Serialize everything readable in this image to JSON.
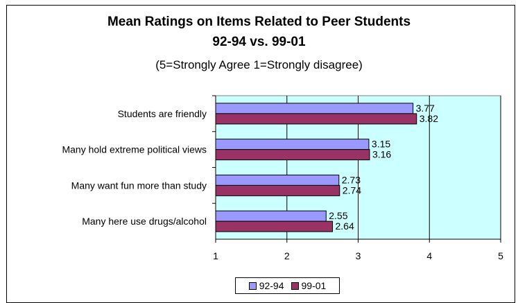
{
  "chart_data": {
    "type": "bar",
    "orientation": "horizontal",
    "title": "Mean Ratings on Items Related to Peer Students",
    "subtitle": "92-94 vs. 99-01",
    "note": "(5=Strongly Agree 1=Strongly disagree)",
    "categories": [
      "Students are friendly",
      "Many hold extreme political views",
      "Many want fun more than study",
      "Many here use drugs/alcohol"
    ],
    "series": [
      {
        "name": "92-94",
        "values": [
          3.77,
          3.15,
          2.73,
          2.55
        ],
        "color": "#9999ff"
      },
      {
        "name": "99-01",
        "values": [
          3.82,
          3.16,
          2.74,
          2.64
        ],
        "color": "#993366"
      }
    ],
    "xlim": [
      1,
      5
    ],
    "x_ticks": [
      "1",
      "2",
      "3",
      "4",
      "5"
    ],
    "plot_background": "#ccffff",
    "grid": true,
    "legend_position": "bottom"
  }
}
